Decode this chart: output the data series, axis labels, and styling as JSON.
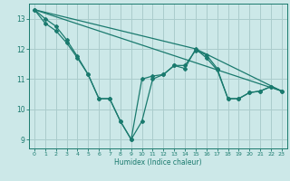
{
  "title": "",
  "xlabel": "Humidex (Indice chaleur)",
  "background_color": "#cce8e8",
  "grid_color": "#aacccc",
  "line_color": "#1a7a6e",
  "xlim": [
    -0.5,
    23.5
  ],
  "ylim": [
    8.7,
    13.5
  ],
  "yticks": [
    9,
    10,
    11,
    12,
    13
  ],
  "xticks": [
    0,
    1,
    2,
    3,
    4,
    5,
    6,
    7,
    8,
    9,
    10,
    11,
    12,
    13,
    14,
    15,
    16,
    17,
    18,
    19,
    20,
    21,
    22,
    23
  ],
  "lines": [
    {
      "x": [
        0,
        1,
        2,
        3,
        4,
        5,
        6,
        7,
        8,
        9,
        10,
        11,
        12,
        13,
        14,
        15,
        16,
        17,
        18,
        19,
        20,
        21,
        22,
        23
      ],
      "y": [
        13.3,
        13.0,
        12.75,
        12.3,
        11.75,
        11.15,
        10.35,
        10.35,
        9.6,
        9.0,
        11.0,
        11.1,
        11.15,
        11.45,
        11.45,
        11.95,
        11.8,
        11.35,
        10.35,
        10.35,
        10.55,
        10.6,
        10.75,
        10.6
      ],
      "marker": true
    },
    {
      "x": [
        0,
        1,
        2,
        3,
        4,
        5,
        6,
        7,
        8,
        9,
        10,
        11,
        12,
        13,
        14,
        15,
        16,
        17,
        18,
        19,
        20,
        21,
        22,
        23
      ],
      "y": [
        13.3,
        12.85,
        12.6,
        12.2,
        11.7,
        11.15,
        10.35,
        10.35,
        9.6,
        9.0,
        9.6,
        11.0,
        11.15,
        11.45,
        11.35,
        12.0,
        11.7,
        11.3,
        10.35,
        10.35,
        10.55,
        10.6,
        10.75,
        10.6
      ],
      "marker": true
    },
    {
      "x": [
        0,
        23
      ],
      "y": [
        13.3,
        10.6
      ],
      "marker": false
    },
    {
      "x": [
        0,
        15,
        23
      ],
      "y": [
        13.3,
        12.0,
        10.6
      ],
      "marker": false
    }
  ]
}
